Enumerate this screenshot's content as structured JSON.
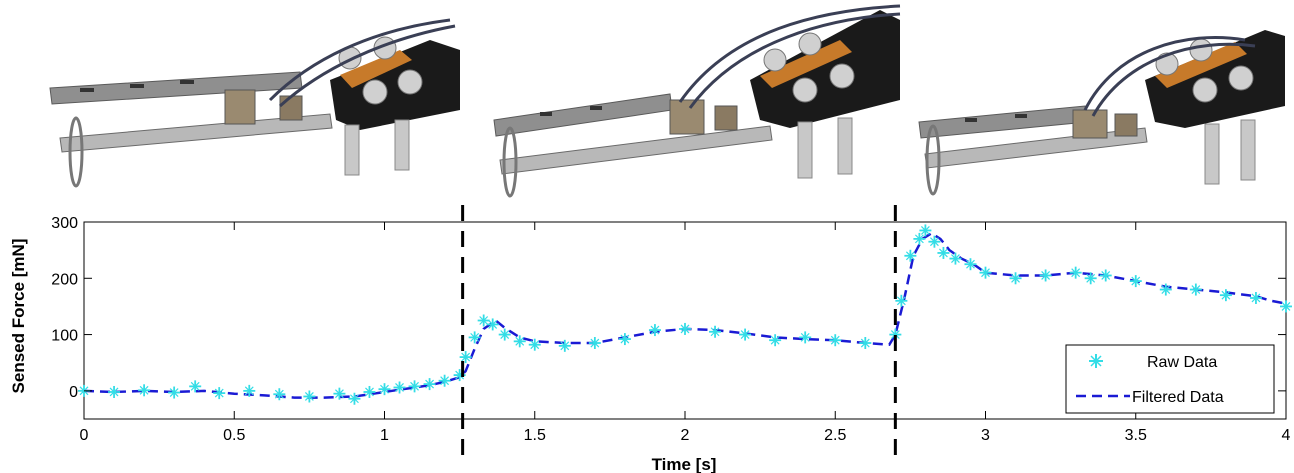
{
  "chart_data": {
    "type": "line",
    "xlabel": "Time [s]",
    "ylabel": "Sensed Force [mN]",
    "xlim": [
      0,
      4
    ],
    "ylim": [
      -50,
      300
    ],
    "xticks": [
      "0",
      "0.5",
      "1",
      "1.5",
      "2",
      "2.5",
      "3",
      "3.5",
      "4"
    ],
    "xtick_values": [
      0,
      0.5,
      1,
      1.5,
      2,
      2.5,
      3,
      3.5,
      4
    ],
    "yticks": [
      "0",
      "100",
      "200",
      "300"
    ],
    "ytick_values": [
      0,
      100,
      200,
      300
    ],
    "grid": false,
    "legend_position": "bottom-right",
    "phase_boundaries": [
      1.26,
      2.7
    ],
    "series": [
      {
        "name": "Raw Data",
        "style": "markers-plus",
        "color": "#33dde6",
        "x": [
          0.0,
          0.1,
          0.2,
          0.3,
          0.37,
          0.45,
          0.55,
          0.65,
          0.75,
          0.85,
          0.9,
          0.95,
          1.0,
          1.05,
          1.1,
          1.15,
          1.2,
          1.25,
          1.27,
          1.3,
          1.33,
          1.36,
          1.4,
          1.45,
          1.5,
          1.6,
          1.7,
          1.8,
          1.9,
          2.0,
          2.1,
          2.2,
          2.3,
          2.4,
          2.5,
          2.6,
          2.7,
          2.72,
          2.75,
          2.78,
          2.8,
          2.83,
          2.86,
          2.9,
          2.95,
          3.0,
          3.1,
          3.2,
          3.3,
          3.35,
          3.4,
          3.5,
          3.6,
          3.7,
          3.8,
          3.9,
          4.0
        ],
        "y": [
          0,
          -2,
          1,
          -3,
          8,
          -4,
          0,
          -6,
          -10,
          -5,
          -14,
          -2,
          3,
          6,
          8,
          12,
          18,
          28,
          60,
          95,
          125,
          118,
          100,
          88,
          82,
          80,
          85,
          92,
          108,
          110,
          105,
          100,
          90,
          95,
          90,
          85,
          100,
          160,
          240,
          270,
          285,
          265,
          245,
          235,
          225,
          210,
          200,
          205,
          210,
          200,
          205,
          195,
          180,
          180,
          170,
          165,
          150
        ]
      },
      {
        "name": "Filtered Data",
        "style": "dashed",
        "color": "#1a1ad4",
        "x": [
          0.0,
          0.1,
          0.2,
          0.3,
          0.4,
          0.5,
          0.6,
          0.7,
          0.8,
          0.9,
          1.0,
          1.05,
          1.1,
          1.15,
          1.2,
          1.25,
          1.27,
          1.3,
          1.33,
          1.37,
          1.4,
          1.45,
          1.5,
          1.6,
          1.7,
          1.8,
          1.9,
          2.0,
          2.1,
          2.2,
          2.3,
          2.4,
          2.5,
          2.6,
          2.68,
          2.7,
          2.73,
          2.76,
          2.79,
          2.82,
          2.85,
          2.88,
          2.92,
          2.96,
          3.0,
          3.1,
          3.2,
          3.3,
          3.4,
          3.5,
          3.6,
          3.7,
          3.8,
          3.9,
          3.95,
          4.0
        ],
        "y": [
          0,
          -2,
          0,
          -2,
          0,
          -5,
          -8,
          -12,
          -12,
          -10,
          -2,
          2,
          6,
          10,
          16,
          24,
          35,
          75,
          110,
          125,
          112,
          95,
          88,
          85,
          85,
          95,
          105,
          110,
          108,
          102,
          95,
          92,
          90,
          85,
          82,
          100,
          165,
          240,
          270,
          280,
          270,
          250,
          235,
          225,
          210,
          205,
          205,
          210,
          205,
          195,
          185,
          180,
          175,
          168,
          160,
          155
        ]
      }
    ]
  },
  "images": {
    "panel_1": "gripper-photo-open",
    "panel_2": "gripper-photo-partial",
    "panel_3": "gripper-photo-closed"
  },
  "colors": {
    "phase_divider": "#000000",
    "gripper_metal": "#a8a8a8",
    "gripper_body": "#1a1a1a",
    "gripper_copper": "#c77a2a"
  }
}
